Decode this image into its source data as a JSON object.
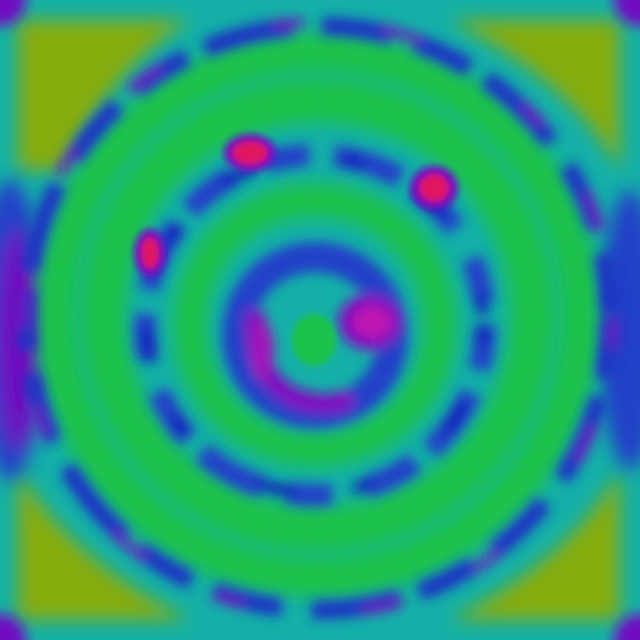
{
  "image": {
    "palette": {
      "teal": "#14b0a8",
      "green": "#1cc24a",
      "olive": "#86ac0c",
      "blue": "#2040c8",
      "deep_blue": "#1018b8",
      "violet": "#7010c0",
      "magenta": "#c012b0",
      "red": "#e01860"
    }
  }
}
